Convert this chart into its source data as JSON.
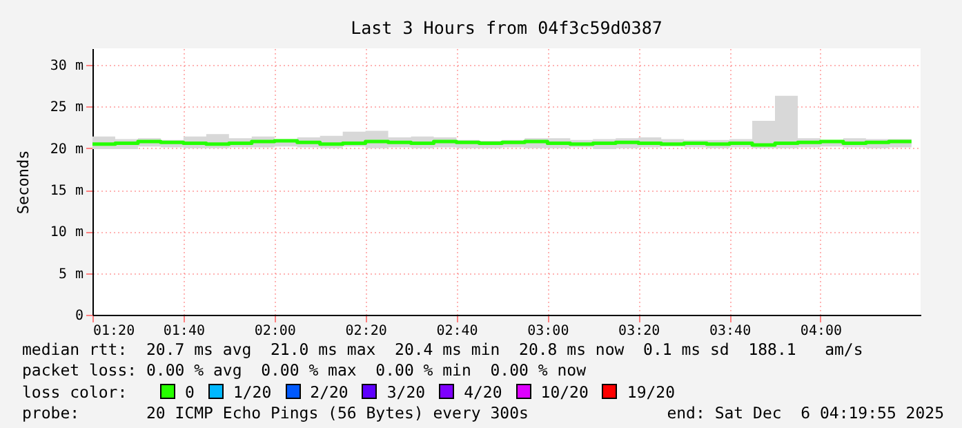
{
  "chart_data": {
    "type": "step",
    "title": "Last 3 Hours from 04f3c59d0387",
    "ylabel": "Seconds",
    "x": [
      "2025-12-06T01:20",
      "2025-12-06T01:25",
      "2025-12-06T01:30",
      "2025-12-06T01:35",
      "2025-12-06T01:40",
      "2025-12-06T01:45",
      "2025-12-06T01:50",
      "2025-12-06T01:55",
      "2025-12-06T02:00",
      "2025-12-06T02:05",
      "2025-12-06T02:10",
      "2025-12-06T02:15",
      "2025-12-06T02:20",
      "2025-12-06T02:25",
      "2025-12-06T02:30",
      "2025-12-06T02:35",
      "2025-12-06T02:40",
      "2025-12-06T02:45",
      "2025-12-06T02:50",
      "2025-12-06T02:55",
      "2025-12-06T03:00",
      "2025-12-06T03:05",
      "2025-12-06T03:10",
      "2025-12-06T03:15",
      "2025-12-06T03:20",
      "2025-12-06T03:25",
      "2025-12-06T03:30",
      "2025-12-06T03:35",
      "2025-12-06T03:40",
      "2025-12-06T03:45",
      "2025-12-06T03:50",
      "2025-12-06T03:55",
      "2025-12-06T04:00",
      "2025-12-06T04:05",
      "2025-12-06T04:10",
      "2025-12-06T04:15",
      "2025-12-06T04:20"
    ],
    "series": [
      {
        "name": "0",
        "color": "#26ff00",
        "values": [
          20.5,
          20.6,
          20.8,
          20.7,
          20.6,
          20.5,
          20.6,
          20.8,
          20.9,
          20.7,
          20.5,
          20.6,
          20.8,
          20.7,
          20.6,
          20.8,
          20.7,
          20.6,
          20.7,
          20.8,
          20.6,
          20.5,
          20.6,
          20.7,
          20.6,
          20.5,
          20.6,
          20.5,
          20.6,
          20.4,
          20.6,
          20.7,
          20.8,
          20.6,
          20.7,
          20.8,
          20.8
        ],
        "lower": [
          19.9,
          19.9,
          20.2,
          20.1,
          20.0,
          20.0,
          20.1,
          20.1,
          20.2,
          20.1,
          20.0,
          20.2,
          20.0,
          20.1,
          20.0,
          20.1,
          20.0,
          20.0,
          20.1,
          20.0,
          20.0,
          20.1,
          19.9,
          20.0,
          20.1,
          20.2,
          20.1,
          20.0,
          20.1,
          20.0,
          20.0,
          20.1,
          20.2,
          20.1,
          20.0,
          20.1,
          20.1
        ],
        "upper": [
          21.4,
          21.1,
          21.2,
          21.0,
          21.4,
          21.7,
          21.2,
          21.4,
          21.1,
          21.3,
          21.5,
          22.0,
          22.1,
          21.3,
          21.4,
          21.3,
          21.0,
          20.9,
          21.0,
          21.2,
          21.2,
          21.0,
          21.1,
          21.2,
          21.3,
          21.1,
          21.0,
          21.0,
          21.1,
          23.3,
          26.3,
          21.2,
          21.0,
          21.2,
          21.1,
          21.1,
          21.1
        ]
      },
      {
        "name": "1/20",
        "color": "#00b8ff",
        "values": [
          null,
          null,
          null,
          null,
          null,
          null,
          null,
          null,
          null,
          null,
          null,
          null,
          null,
          null,
          null,
          null,
          null,
          null,
          null,
          null,
          null,
          null,
          null,
          null,
          null,
          null,
          null,
          null,
          null,
          null,
          null,
          null,
          null,
          null,
          null,
          null,
          null
        ]
      },
      {
        "name": "2/20",
        "color": "#0059ff",
        "values": [
          null,
          null,
          null,
          null,
          null,
          null,
          null,
          null,
          null,
          null,
          null,
          null,
          null,
          null,
          null,
          null,
          null,
          null,
          null,
          null,
          null,
          null,
          null,
          null,
          null,
          null,
          null,
          null,
          null,
          null,
          null,
          null,
          null,
          null,
          null,
          null,
          null
        ]
      },
      {
        "name": "3/20",
        "color": "#5e00ff",
        "values": [
          null,
          null,
          null,
          null,
          null,
          null,
          null,
          null,
          null,
          null,
          null,
          null,
          null,
          null,
          null,
          null,
          null,
          null,
          null,
          null,
          null,
          null,
          null,
          null,
          null,
          null,
          null,
          null,
          null,
          null,
          null,
          null,
          null,
          null,
          null,
          null,
          null
        ]
      },
      {
        "name": "4/20",
        "color": "#7e00ff",
        "values": [
          null,
          null,
          null,
          null,
          null,
          null,
          null,
          null,
          null,
          null,
          null,
          null,
          null,
          null,
          null,
          null,
          null,
          null,
          null,
          null,
          null,
          null,
          null,
          null,
          null,
          null,
          null,
          null,
          null,
          null,
          null,
          null,
          null,
          null,
          null,
          null,
          null
        ]
      },
      {
        "name": "10/20",
        "color": "#dd00ff",
        "values": [
          null,
          null,
          null,
          null,
          null,
          null,
          null,
          null,
          null,
          null,
          null,
          null,
          null,
          null,
          null,
          null,
          null,
          null,
          null,
          null,
          null,
          null,
          null,
          null,
          null,
          null,
          null,
          null,
          null,
          null,
          null,
          null,
          null,
          null,
          null,
          null,
          null
        ]
      },
      {
        "name": "19/20",
        "color": "#ff0000",
        "values": [
          null,
          null,
          null,
          null,
          null,
          null,
          null,
          null,
          null,
          null,
          null,
          null,
          null,
          null,
          null,
          null,
          null,
          null,
          null,
          null,
          null,
          null,
          null,
          null,
          null,
          null,
          null,
          null,
          null,
          null,
          null,
          null,
          null,
          null,
          null,
          null,
          null
        ]
      }
    ],
    "legend_title": "loss color:",
    "legend": "bottom",
    "xlim": [
      "2025-12-06T01:20",
      "2025-12-06T04:22"
    ],
    "xticks": [
      {
        "value": "2025-12-06T01:20",
        "label": "01:20"
      },
      {
        "value": "2025-12-06T01:40",
        "label": "01:40"
      },
      {
        "value": "2025-12-06T02:00",
        "label": "02:00"
      },
      {
        "value": "2025-12-06T02:20",
        "label": "02:20"
      },
      {
        "value": "2025-12-06T02:40",
        "label": "02:40"
      },
      {
        "value": "2025-12-06T03:00",
        "label": "03:00"
      },
      {
        "value": "2025-12-06T03:20",
        "label": "03:20"
      },
      {
        "value": "2025-12-06T03:40",
        "label": "03:40"
      },
      {
        "value": "2025-12-06T04:00",
        "label": "04:00"
      }
    ],
    "ylim": [
      0,
      32
    ],
    "yticks": [
      0,
      {
        "value": 5,
        "label": "5 m"
      },
      {
        "value": 10,
        "label": "10 m"
      },
      {
        "value": 15,
        "label": "15 m"
      },
      {
        "value": 20,
        "label": "20 m"
      },
      {
        "value": 25,
        "label": "25 m"
      },
      {
        "value": 30,
        "label": "30 m"
      }
    ],
    "grid": true,
    "annotations": [
      "median rtt:  20.7 ms avg  21.0 ms max  20.4 ms min  20.8 ms now  0.1 ms sd  188.1   am/s",
      "packet loss: 0.00 % avg  0.00 % max  0.00 % min  0.00 % now",
      "probe:       20 ICMP Echo Pings (56 Bytes) every 300s",
      "end: Sat Dec  6 04:19:55 2025"
    ]
  }
}
